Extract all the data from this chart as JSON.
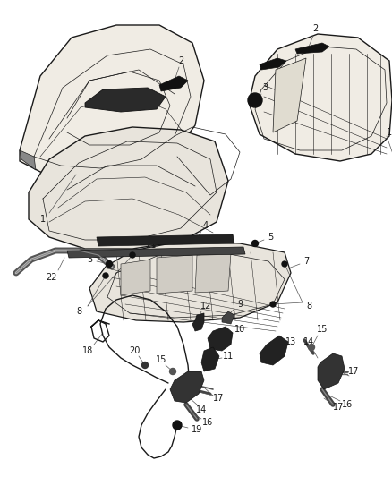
{
  "background_color": "#ffffff",
  "line_color": "#1a1a1a",
  "fig_width": 4.38,
  "fig_height": 5.33,
  "dpi": 100,
  "label_fontsize": 7.0,
  "parts": {
    "hood1_outer": {
      "color": "#1a1a1a",
      "lw": 1.2
    },
    "hood2_outer": {
      "color": "#1a1a1a",
      "lw": 1.2
    },
    "inner_lines": {
      "color": "#1a1a1a",
      "lw": 0.6
    },
    "strip": {
      "color": "#111111",
      "lw": 2.5
    },
    "clip": {
      "color": "#111111"
    }
  }
}
